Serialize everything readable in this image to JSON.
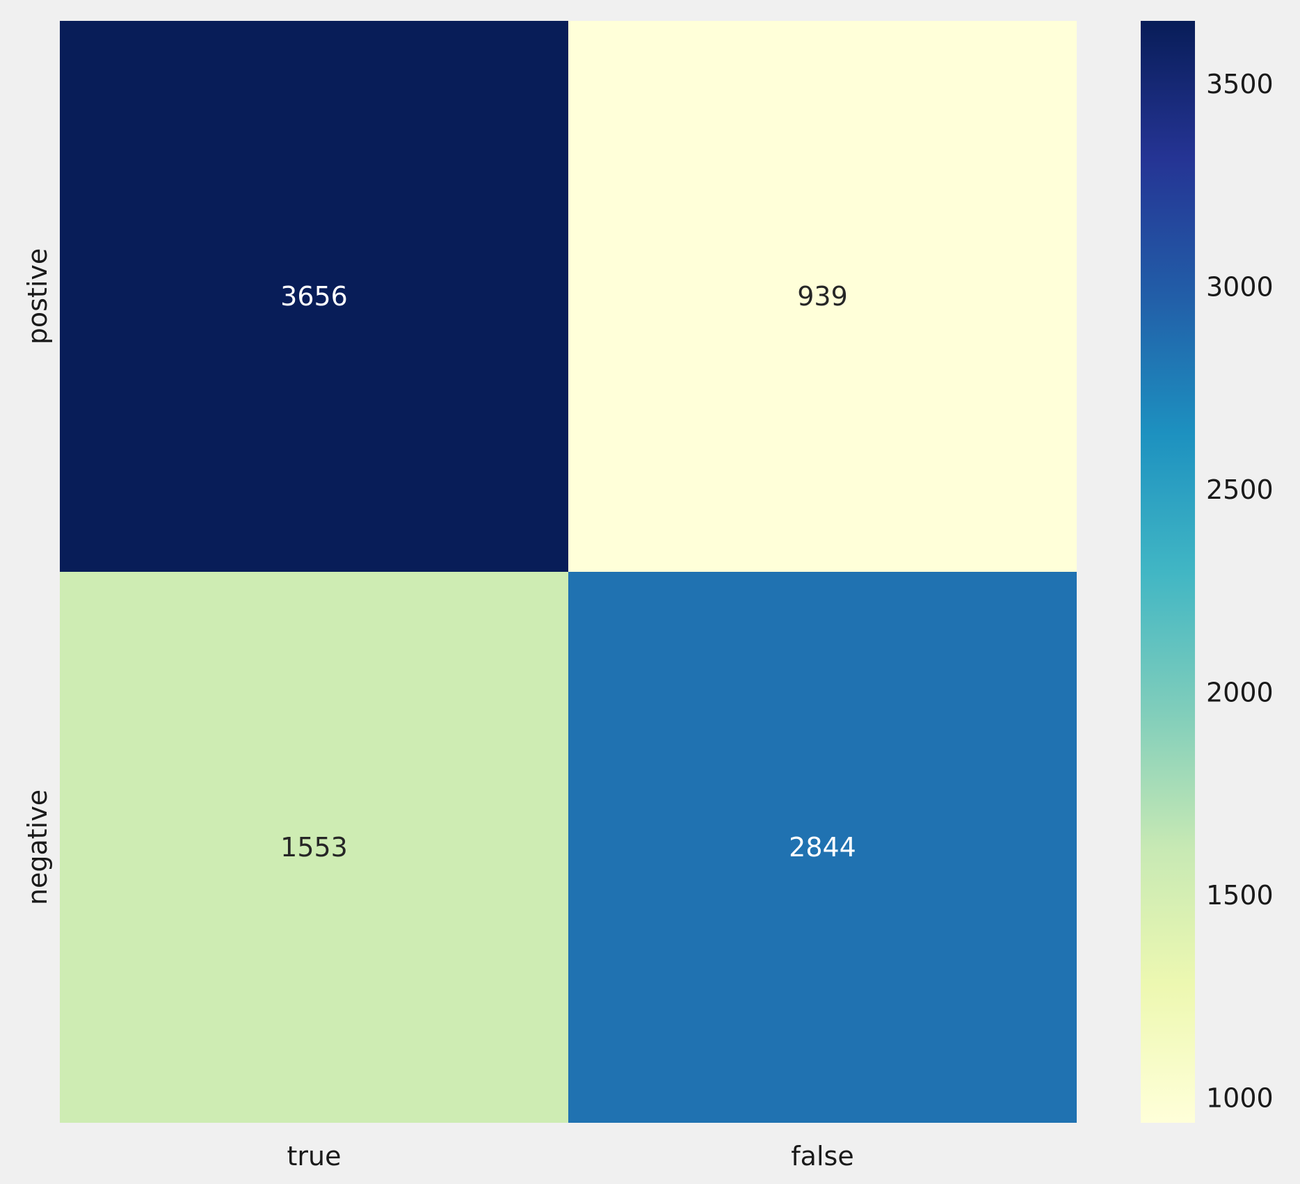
{
  "chart_data": {
    "type": "heatmap",
    "x_labels": [
      "true",
      "false"
    ],
    "y_labels": [
      "postive",
      "negative"
    ],
    "values": [
      [
        3656,
        939
      ],
      [
        1553,
        2844
      ]
    ],
    "colormap": "YlGnBu",
    "colorbar": {
      "range": [
        939,
        3656
      ],
      "ticks": [
        "1000",
        "1500",
        "2000",
        "2500",
        "3000",
        "3500"
      ]
    },
    "annotations": true,
    "background_color": "#f0f0f0"
  }
}
